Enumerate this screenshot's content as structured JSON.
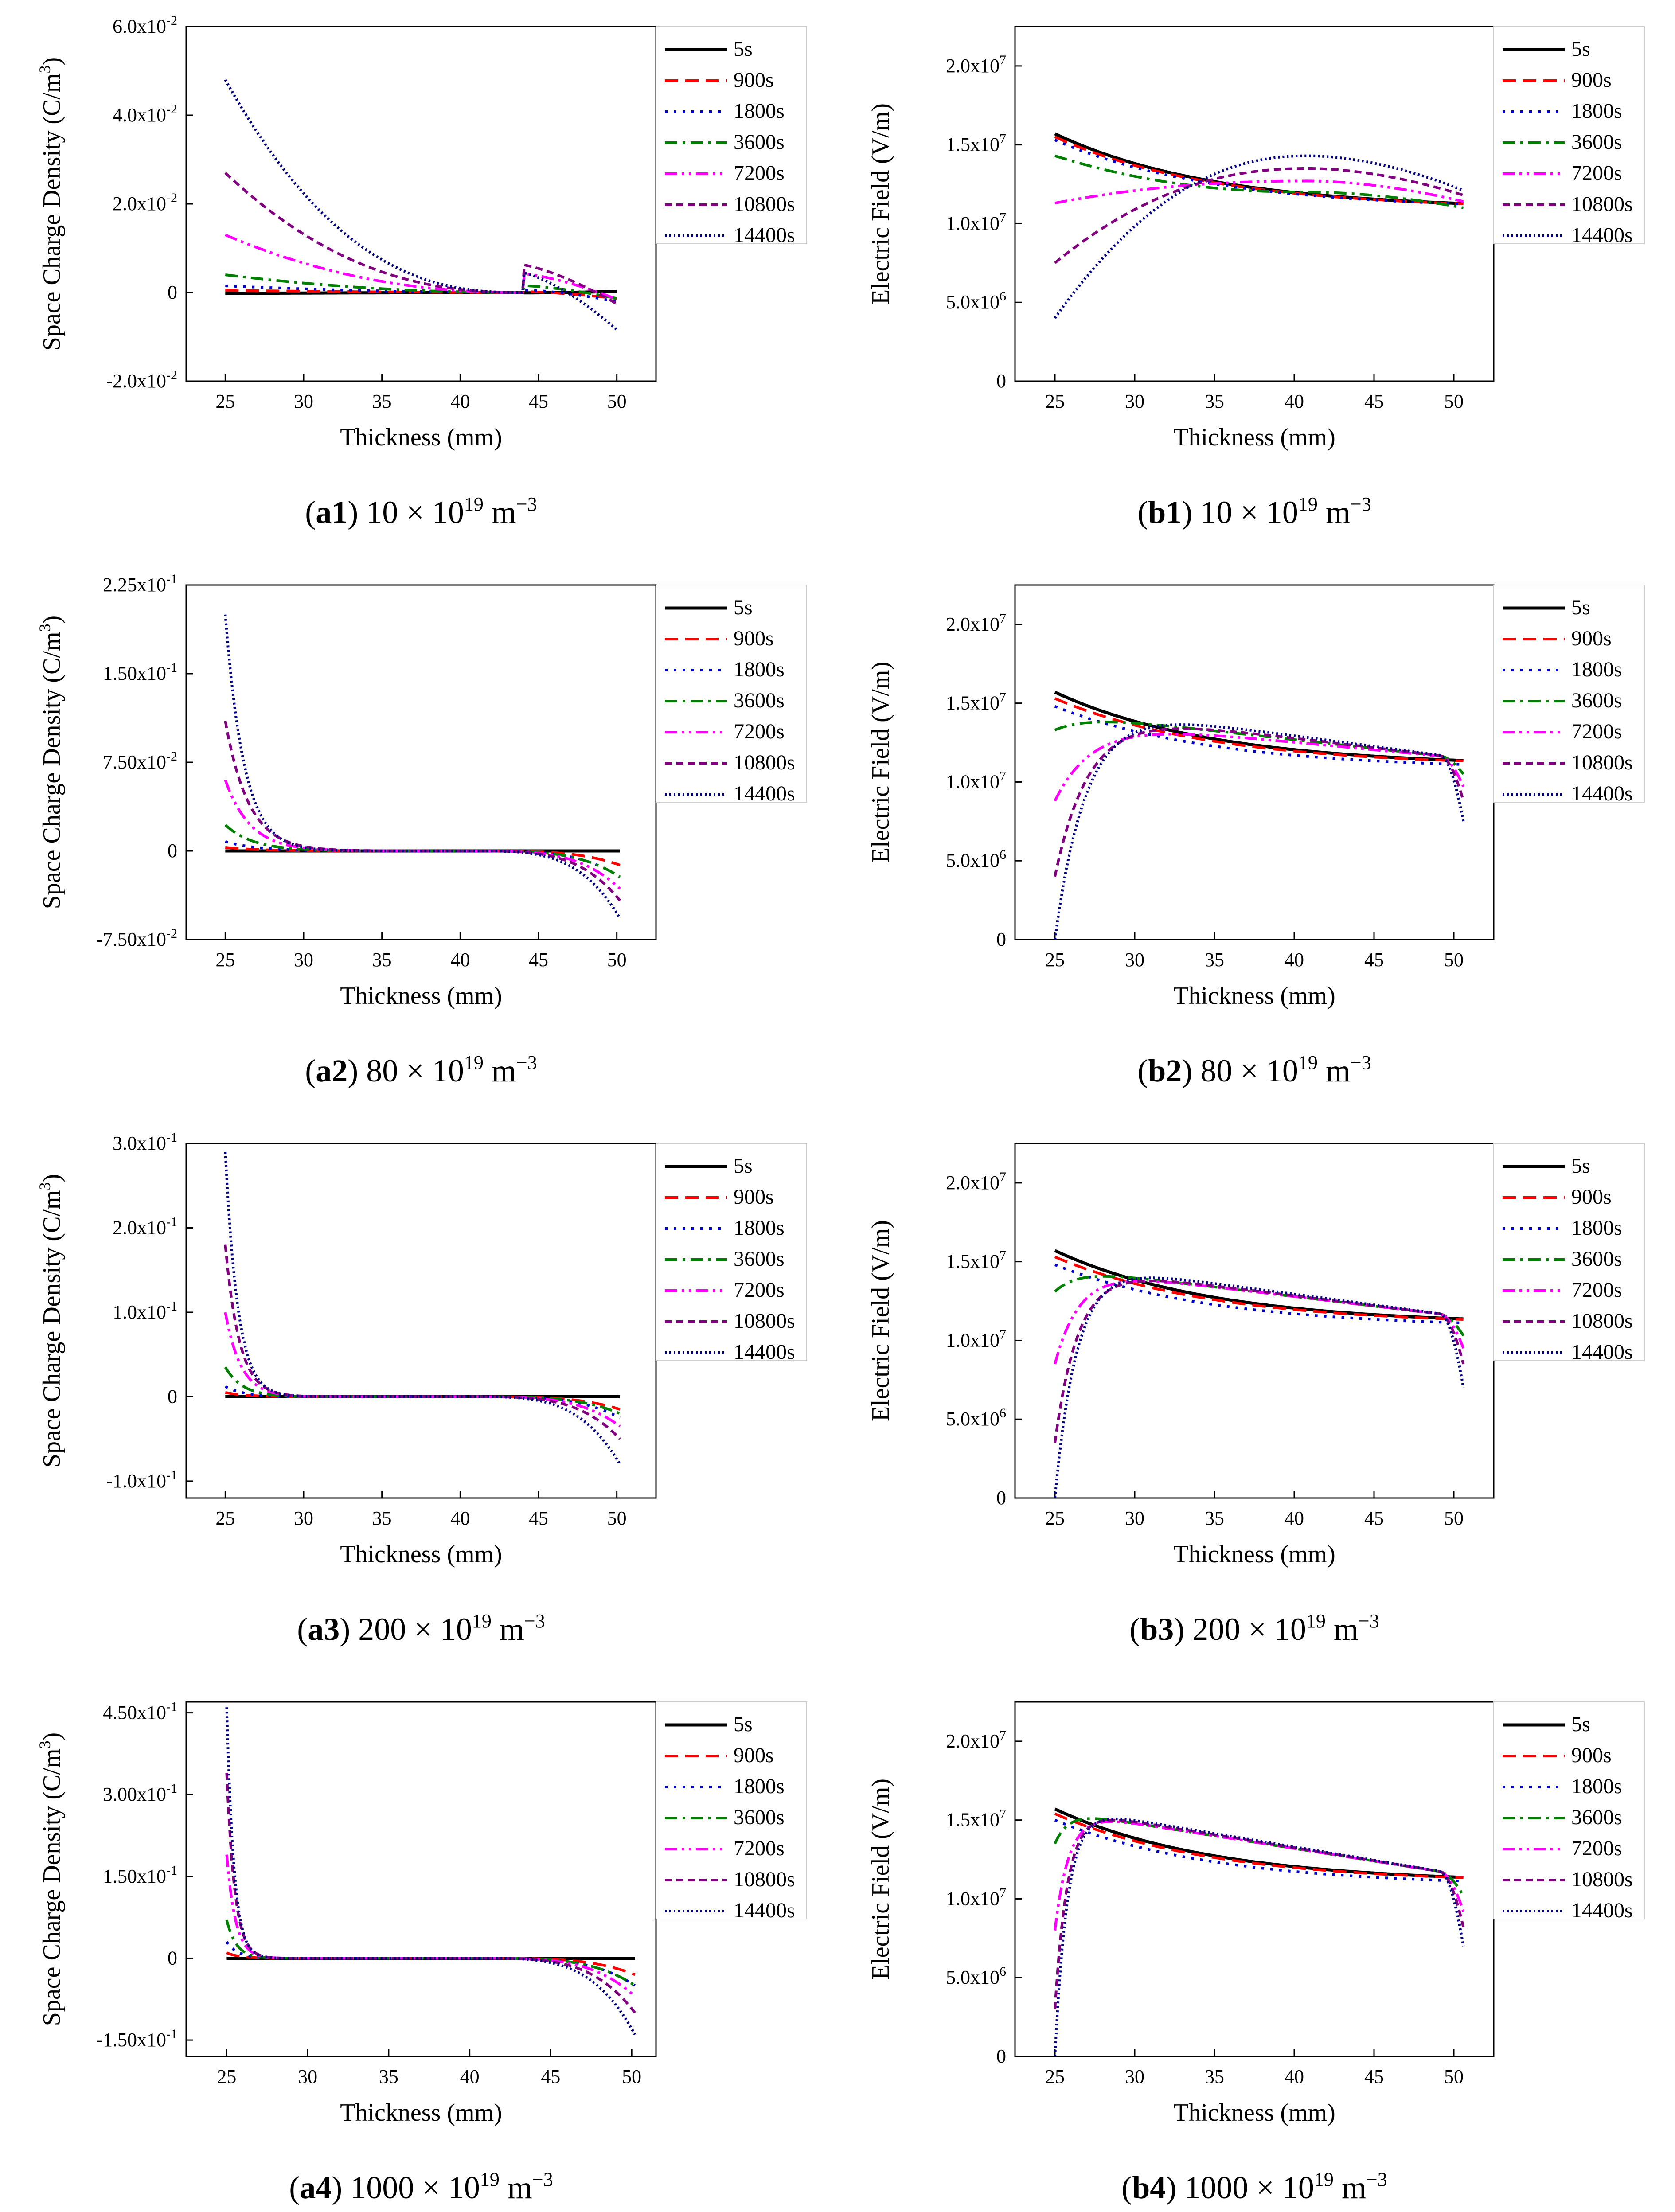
{
  "figure": {
    "legend_entries": [
      "5s",
      "900s",
      "1800s",
      "3600s",
      "7200s",
      "10800s",
      "14400s"
    ],
    "series_styles": [
      {
        "name": "5s",
        "color": "#000000",
        "dash": "solid"
      },
      {
        "name": "900s",
        "color": "#ff0000",
        "dash": "dash"
      },
      {
        "name": "1800s",
        "color": "#0000cc",
        "dash": "dot"
      },
      {
        "name": "3600s",
        "color": "#008000",
        "dash": "dashdot"
      },
      {
        "name": "7200s",
        "color": "#ff00ff",
        "dash": "dashdotdot"
      },
      {
        "name": "10800s",
        "color": "#800080",
        "dash": "shortdash"
      },
      {
        "name": "14400s",
        "color": "#000080",
        "dash": "shortdot"
      }
    ]
  },
  "chart_data": [
    {
      "id": "a1",
      "type": "line",
      "kind": "charge",
      "col": 0,
      "row": 0,
      "caption": {
        "bold": "a1",
        "value": "10",
        "exp": "19",
        "unit": "m",
        "unit_exp": "−3"
      },
      "xlabel": "Thickness (mm)",
      "ylabel": "Space Charge Density (C/m",
      "ylabel_exp": "3",
      "ylabel_close": ")",
      "xlim": [
        22.5,
        52.5
      ],
      "ylim": [
        -0.02,
        0.06
      ],
      "xticks": [
        {
          "v": 25,
          "t": "25"
        },
        {
          "v": 30,
          "t": "30"
        },
        {
          "v": 35,
          "t": "35"
        },
        {
          "v": 40,
          "t": "40"
        },
        {
          "v": 45,
          "t": "45"
        },
        {
          "v": 50,
          "t": "50"
        }
      ],
      "yticks": [
        {
          "v": -0.02,
          "m": "-2.0x10",
          "e": "-2"
        },
        {
          "v": 0,
          "m": "0",
          "e": ""
        },
        {
          "v": 0.02,
          "m": "2.0x10",
          "e": "-2"
        },
        {
          "v": 0.04,
          "m": "4.0x10",
          "e": "-2"
        },
        {
          "v": 0.06,
          "m": "6.0x10",
          "e": "-2"
        }
      ],
      "x": [
        25,
        50
      ],
      "zero_at": 44,
      "peak_left": [
        -0.0002,
        0.0005,
        0.0015,
        0.004,
        0.013,
        0.027,
        0.048
      ],
      "right_end": [
        0.0003,
        -0.0015,
        -0.0025,
        -0.0025,
        -0.0045,
        -0.0065,
        -0.0105
      ],
      "decay_mm": [
        20,
        20,
        20,
        20,
        17,
        13,
        8
      ]
    },
    {
      "id": "b1",
      "type": "line",
      "kind": "field",
      "col": 1,
      "row": 0,
      "caption": {
        "bold": "b1",
        "value": "10",
        "exp": "19",
        "unit": "m",
        "unit_exp": "−3"
      },
      "xlabel": "Thickness (mm)",
      "ylabel": "Electric Field (V/m)",
      "ylabel_exp": "",
      "ylabel_close": "",
      "xlim": [
        22.5,
        52.5
      ],
      "ylim": [
        0,
        22500000
      ],
      "xticks": [
        {
          "v": 25,
          "t": "25"
        },
        {
          "v": 30,
          "t": "30"
        },
        {
          "v": 35,
          "t": "35"
        },
        {
          "v": 40,
          "t": "40"
        },
        {
          "v": 45,
          "t": "45"
        },
        {
          "v": 50,
          "t": "50"
        }
      ],
      "yticks": [
        {
          "v": 0,
          "m": "0",
          "e": ""
        },
        {
          "v": 5000000,
          "m": "5.0x10",
          "e": "6"
        },
        {
          "v": 10000000,
          "m": "1.0x10",
          "e": "7"
        },
        {
          "v": 15000000,
          "m": "1.5x10",
          "e": "7"
        },
        {
          "v": 20000000,
          "m": "2.0x10",
          "e": "7"
        }
      ],
      "x": [
        25,
        50.6
      ],
      "left": [
        15700000,
        15500000,
        15300000,
        14300000,
        11300000,
        7500000,
        4000000
      ],
      "mid_peak": [
        0,
        0,
        0,
        12000000,
        12700000,
        13500000,
        14300000
      ],
      "right": [
        10900000,
        10900000,
        10900000,
        11000000,
        11400000,
        11800000,
        12100000
      ],
      "rise_mm": [
        8,
        8,
        8,
        8,
        8,
        8,
        8
      ]
    },
    {
      "id": "a2",
      "type": "line",
      "kind": "charge",
      "col": 0,
      "row": 1,
      "caption": {
        "bold": "a2",
        "value": "80",
        "exp": "19",
        "unit": "m",
        "unit_exp": "−3"
      },
      "xlabel": "Thickness (mm)",
      "ylabel": "Space Charge Density (C/m",
      "ylabel_exp": "3",
      "ylabel_close": ")",
      "xlim": [
        22.5,
        52.5
      ],
      "ylim": [
        -0.075,
        0.225
      ],
      "xticks": [
        {
          "v": 25,
          "t": "25"
        },
        {
          "v": 30,
          "t": "30"
        },
        {
          "v": 35,
          "t": "35"
        },
        {
          "v": 40,
          "t": "40"
        },
        {
          "v": 45,
          "t": "45"
        },
        {
          "v": 50,
          "t": "50"
        }
      ],
      "yticks": [
        {
          "v": -0.075,
          "m": "-7.50x10",
          "e": "-2"
        },
        {
          "v": 0,
          "m": "0",
          "e": ""
        },
        {
          "v": 0.075,
          "m": "7.50x10",
          "e": "-2"
        },
        {
          "v": 0.15,
          "m": "1.50x10",
          "e": "-1"
        },
        {
          "v": 0.225,
          "m": "2.25x10",
          "e": "-1"
        }
      ],
      "x": [
        25,
        50.2
      ],
      "zero_at": 40,
      "peak_left": [
        0,
        0.003,
        0.008,
        0.022,
        0.06,
        0.11,
        0.2
      ],
      "right_end": [
        0,
        -0.012,
        -0.022,
        -0.022,
        -0.032,
        -0.042,
        -0.057
      ],
      "decay_mm": [
        3,
        2.2,
        2.0,
        1.8,
        1.6,
        1.5,
        1.2
      ]
    },
    {
      "id": "b2",
      "type": "line",
      "kind": "field",
      "col": 1,
      "row": 1,
      "caption": {
        "bold": "b2",
        "value": "80",
        "exp": "19",
        "unit": "m",
        "unit_exp": "−3"
      },
      "xlabel": "Thickness (mm)",
      "ylabel": "Electric Field (V/m)",
      "ylabel_exp": "",
      "ylabel_close": "",
      "xlim": [
        22.5,
        52.5
      ],
      "ylim": [
        0,
        22500000
      ],
      "xticks": [
        {
          "v": 25,
          "t": "25"
        },
        {
          "v": 30,
          "t": "30"
        },
        {
          "v": 35,
          "t": "35"
        },
        {
          "v": 40,
          "t": "40"
        },
        {
          "v": 45,
          "t": "45"
        },
        {
          "v": 50,
          "t": "50"
        }
      ],
      "yticks": [
        {
          "v": 0,
          "m": "0",
          "e": ""
        },
        {
          "v": 5000000,
          "m": "5.0x10",
          "e": "6"
        },
        {
          "v": 10000000,
          "m": "1.0x10",
          "e": "7"
        },
        {
          "v": 15000000,
          "m": "1.5x10",
          "e": "7"
        },
        {
          "v": 20000000,
          "m": "2.0x10",
          "e": "7"
        }
      ],
      "x": [
        25,
        50.6
      ],
      "left": [
        15700000,
        15300000,
        14800000,
        13300000,
        8800000,
        4000000,
        0
      ],
      "mid_peak": [
        0,
        0,
        0,
        13800000,
        13500000,
        14000000,
        14300000
      ],
      "right": [
        11000000,
        11000000,
        10800000,
        10500000,
        9700000,
        8800000,
        7500000
      ],
      "rise_mm": [
        3,
        3,
        3,
        2.5,
        2.5,
        2.2,
        2.0
      ]
    },
    {
      "id": "a3",
      "type": "line",
      "kind": "charge",
      "col": 0,
      "row": 2,
      "caption": {
        "bold": "a3",
        "value": "200",
        "exp": "19",
        "unit": "m",
        "unit_exp": "−3"
      },
      "xlabel": "Thickness (mm)",
      "ylabel": "Space Charge Density (C/m",
      "ylabel_exp": "3",
      "ylabel_close": ")",
      "xlim": [
        22.5,
        52.5
      ],
      "ylim": [
        -0.12,
        0.3
      ],
      "xticks": [
        {
          "v": 25,
          "t": "25"
        },
        {
          "v": 30,
          "t": "30"
        },
        {
          "v": 35,
          "t": "35"
        },
        {
          "v": 40,
          "t": "40"
        },
        {
          "v": 45,
          "t": "45"
        },
        {
          "v": 50,
          "t": "50"
        }
      ],
      "yticks": [
        {
          "v": -0.1,
          "m": "-1.0x10",
          "e": "-1"
        },
        {
          "v": 0,
          "m": "0",
          "e": ""
        },
        {
          "v": 0.1,
          "m": "1.0x10",
          "e": "-1"
        },
        {
          "v": 0.2,
          "m": "2.0x10",
          "e": "-1"
        },
        {
          "v": 0.3,
          "m": "3.0x10",
          "e": "-1"
        }
      ],
      "x": [
        25,
        50.2
      ],
      "zero_at": 40,
      "peak_left": [
        0,
        0.005,
        0.012,
        0.035,
        0.1,
        0.18,
        0.29
      ],
      "right_end": [
        0,
        -0.015,
        -0.025,
        -0.02,
        -0.035,
        -0.05,
        -0.08
      ],
      "decay_mm": [
        2,
        1.3,
        1.2,
        1.1,
        1.0,
        0.9,
        0.8
      ]
    },
    {
      "id": "b3",
      "type": "line",
      "kind": "field",
      "col": 1,
      "row": 2,
      "caption": {
        "bold": "b3",
        "value": "200",
        "exp": "19",
        "unit": "m",
        "unit_exp": "−3"
      },
      "xlabel": "Thickness (mm)",
      "ylabel": "Electric Field (V/m)",
      "ylabel_exp": "",
      "ylabel_close": "",
      "xlim": [
        22.5,
        52.5
      ],
      "ylim": [
        0,
        22500000
      ],
      "xticks": [
        {
          "v": 25,
          "t": "25"
        },
        {
          "v": 30,
          "t": "30"
        },
        {
          "v": 35,
          "t": "35"
        },
        {
          "v": 40,
          "t": "40"
        },
        {
          "v": 45,
          "t": "45"
        },
        {
          "v": 50,
          "t": "50"
        }
      ],
      "yticks": [
        {
          "v": 0,
          "m": "0",
          "e": ""
        },
        {
          "v": 5000000,
          "m": "5.0x10",
          "e": "6"
        },
        {
          "v": 10000000,
          "m": "1.0x10",
          "e": "7"
        },
        {
          "v": 15000000,
          "m": "1.5x10",
          "e": "7"
        },
        {
          "v": 20000000,
          "m": "2.0x10",
          "e": "7"
        }
      ],
      "x": [
        25,
        50.6
      ],
      "left": [
        15700000,
        15300000,
        14800000,
        13100000,
        8500000,
        3500000,
        0
      ],
      "mid_peak": [
        0,
        0,
        0,
        14000000,
        14000000,
        14100000,
        14300000
      ],
      "right": [
        11000000,
        11000000,
        10800000,
        10300000,
        9500000,
        8500000,
        7000000
      ],
      "rise_mm": [
        2,
        2,
        2,
        1.6,
        1.6,
        1.5,
        1.4
      ]
    },
    {
      "id": "a4",
      "type": "line",
      "kind": "charge",
      "col": 0,
      "row": 3,
      "caption": {
        "bold": "a4",
        "value": "1000",
        "exp": "19",
        "unit": "m",
        "unit_exp": "−3"
      },
      "xlabel": "Thickness (mm)",
      "ylabel": "Space Charge Density (C/m",
      "ylabel_exp": "3",
      "ylabel_close": ")",
      "xlim": [
        22.5,
        51.5
      ],
      "ylim": [
        -0.18,
        0.47
      ],
      "xticks": [
        {
          "v": 25,
          "t": "25"
        },
        {
          "v": 30,
          "t": "30"
        },
        {
          "v": 35,
          "t": "35"
        },
        {
          "v": 40,
          "t": "40"
        },
        {
          "v": 45,
          "t": "45"
        },
        {
          "v": 50,
          "t": "50"
        }
      ],
      "yticks": [
        {
          "v": -0.15,
          "m": "-1.50x10",
          "e": "-1"
        },
        {
          "v": 0,
          "m": "0",
          "e": ""
        },
        {
          "v": 0.15,
          "m": "1.50x10",
          "e": "-1"
        },
        {
          "v": 0.3,
          "m": "3.00x10",
          "e": "-1"
        },
        {
          "v": 0.45,
          "m": "4.50x10",
          "e": "-1"
        }
      ],
      "x": [
        25,
        50.2
      ],
      "zero_at": 40,
      "peak_left": [
        0,
        0.01,
        0.03,
        0.07,
        0.19,
        0.34,
        0.46
      ],
      "right_end": [
        0,
        -0.03,
        -0.05,
        -0.05,
        -0.07,
        -0.1,
        -0.14
      ],
      "decay_mm": [
        1,
        0.8,
        0.7,
        0.6,
        0.55,
        0.5,
        0.45
      ]
    },
    {
      "id": "b4",
      "type": "line",
      "kind": "field",
      "col": 1,
      "row": 3,
      "caption": {
        "bold": "b4",
        "value": "1000",
        "exp": "19",
        "unit": "m",
        "unit_exp": "−3"
      },
      "xlabel": "Thickness (mm)",
      "ylabel": "Electric Field (V/m)",
      "ylabel_exp": "",
      "ylabel_close": "",
      "xlim": [
        22.5,
        52.5
      ],
      "ylim": [
        0,
        22500000
      ],
      "xticks": [
        {
          "v": 25,
          "t": "25"
        },
        {
          "v": 30,
          "t": "30"
        },
        {
          "v": 35,
          "t": "35"
        },
        {
          "v": 40,
          "t": "40"
        },
        {
          "v": 45,
          "t": "45"
        },
        {
          "v": 50,
          "t": "50"
        }
      ],
      "yticks": [
        {
          "v": 0,
          "m": "0",
          "e": ""
        },
        {
          "v": 5000000,
          "m": "5.0x10",
          "e": "6"
        },
        {
          "v": 10000000,
          "m": "1.0x10",
          "e": "7"
        },
        {
          "v": 15000000,
          "m": "1.5x10",
          "e": "7"
        },
        {
          "v": 20000000,
          "m": "2.0x10",
          "e": "7"
        }
      ],
      "x": [
        25,
        50.6
      ],
      "left": [
        15700000,
        15400000,
        15000000,
        13500000,
        8000000,
        3000000,
        0
      ],
      "mid_peak": [
        0,
        0,
        0,
        14800000,
        14800000,
        14900000,
        15000000
      ],
      "right": [
        11000000,
        11000000,
        10800000,
        10200000,
        9200000,
        8200000,
        7000000
      ],
      "rise_mm": [
        1,
        1,
        1,
        0.9,
        0.9,
        0.8,
        0.8
      ]
    }
  ]
}
